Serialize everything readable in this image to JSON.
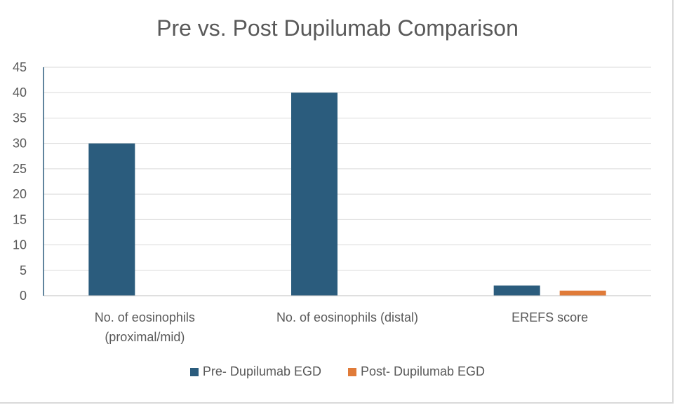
{
  "chart_data": {
    "type": "bar",
    "title": "Pre vs. Post Dupilumab Comparison",
    "categories": [
      [
        "No. of eosinophils",
        "(proximal/mid)"
      ],
      [
        "No. of eosinophils (distal)"
      ],
      [
        "EREFS score"
      ]
    ],
    "series": [
      {
        "name": "Pre- Dupilumab EGD",
        "values": [
          30,
          40,
          2
        ],
        "color": "#2b5c7d"
      },
      {
        "name": "Post- Dupilumab EGD",
        "values": [
          0,
          0,
          1
        ],
        "color": "#e07b39"
      }
    ],
    "ylim": [
      0,
      45
    ],
    "yticks": [
      0,
      5,
      10,
      15,
      20,
      25,
      30,
      35,
      40,
      45
    ],
    "grid": true,
    "legend_position": "bottom"
  }
}
